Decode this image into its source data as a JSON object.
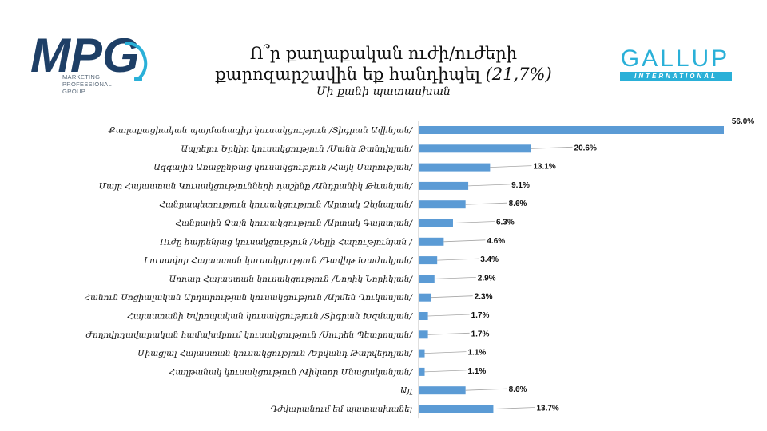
{
  "logo_left": {
    "text": "MPG",
    "sub_lines": [
      "MARKETING",
      "PROFESSIONAL",
      "GROUP"
    ],
    "colors": {
      "dark": "#1e3f66",
      "light": "#2ab0d8"
    }
  },
  "logo_right": {
    "word": "GALLUP",
    "bar_text": "INTERNATIONAL",
    "color": "#2ab0d8"
  },
  "title": {
    "line1": "Ո՞ր քաղաքական ուժի/ուժերի",
    "line2": "քարոզարշավին եք հանդիպել",
    "percent": "(21,7%)",
    "subtitle": "Մի քանի պատասխան"
  },
  "chart_data": {
    "type": "bar",
    "orientation": "horizontal",
    "bar_color": "#5b9bd5",
    "value_suffix": "%",
    "xlim": [
      0,
      60
    ],
    "grid": false,
    "categories": [
      "Քաղաքացիական պայմանագիր կուսակցություն /Տիգրան Ավինյան/",
      "Ապրելու Երկիր կուսակցություն /Մանե Թանդիլյան/",
      "Ազգային Առաջընթաց կուսակցություն /Հայկ Մարության/",
      "Մայր Հայաստան Կուսակցությունների դաշինք /Անդրանիկ Թևանյան/",
      "Հանրապետություն կուսակցություն /Արտակ Զեյնալյան/",
      "Հանրային Ձայն կուսակցություն /Արտակ Գալստյան/",
      "Ուժը հայրենյաց կուսակցություն /Նելլի Հարությունյան /",
      "Լուսավոր Հայաստան կուսակցություն /Դավիթ Խաժակյան/",
      "Արդար Հայաստան կուսակցություն /Նորիկ Նորիկյան/",
      "Հանուն Սոցիալական Արդարության կուսակցություն /Արմեն Ղուկասյան/",
      "Հայաստանի Եվրոպական կուսակցություն /Տիգրան Խզմալյան/",
      "Ժողովրդավարական համախմբում կուսակցություն /Սուրեն Պետրոսյան/",
      "Միացյալ Հայաստան կուսակցություն /Երվանդ Թարվերդյան/",
      "Հաղթանակ կուսակցություն /Վիկտոր Մնացականյան/",
      "Այլ",
      "Դժվարանում եմ պատասխանել"
    ],
    "values": [
      56.0,
      20.6,
      13.1,
      9.1,
      8.6,
      6.3,
      4.6,
      3.4,
      2.9,
      2.3,
      1.7,
      1.7,
      1.1,
      1.1,
      8.6,
      13.7
    ],
    "value_labels": [
      "56.0%",
      "20.6%",
      "13.1%",
      "9.1%",
      "8.6%",
      "6.3%",
      "4.6%",
      "3.4%",
      "2.9%",
      "2.3%",
      "1.7%",
      "1.7%",
      "1.1%",
      "1.1%",
      "8.6%",
      "13.7%"
    ]
  }
}
